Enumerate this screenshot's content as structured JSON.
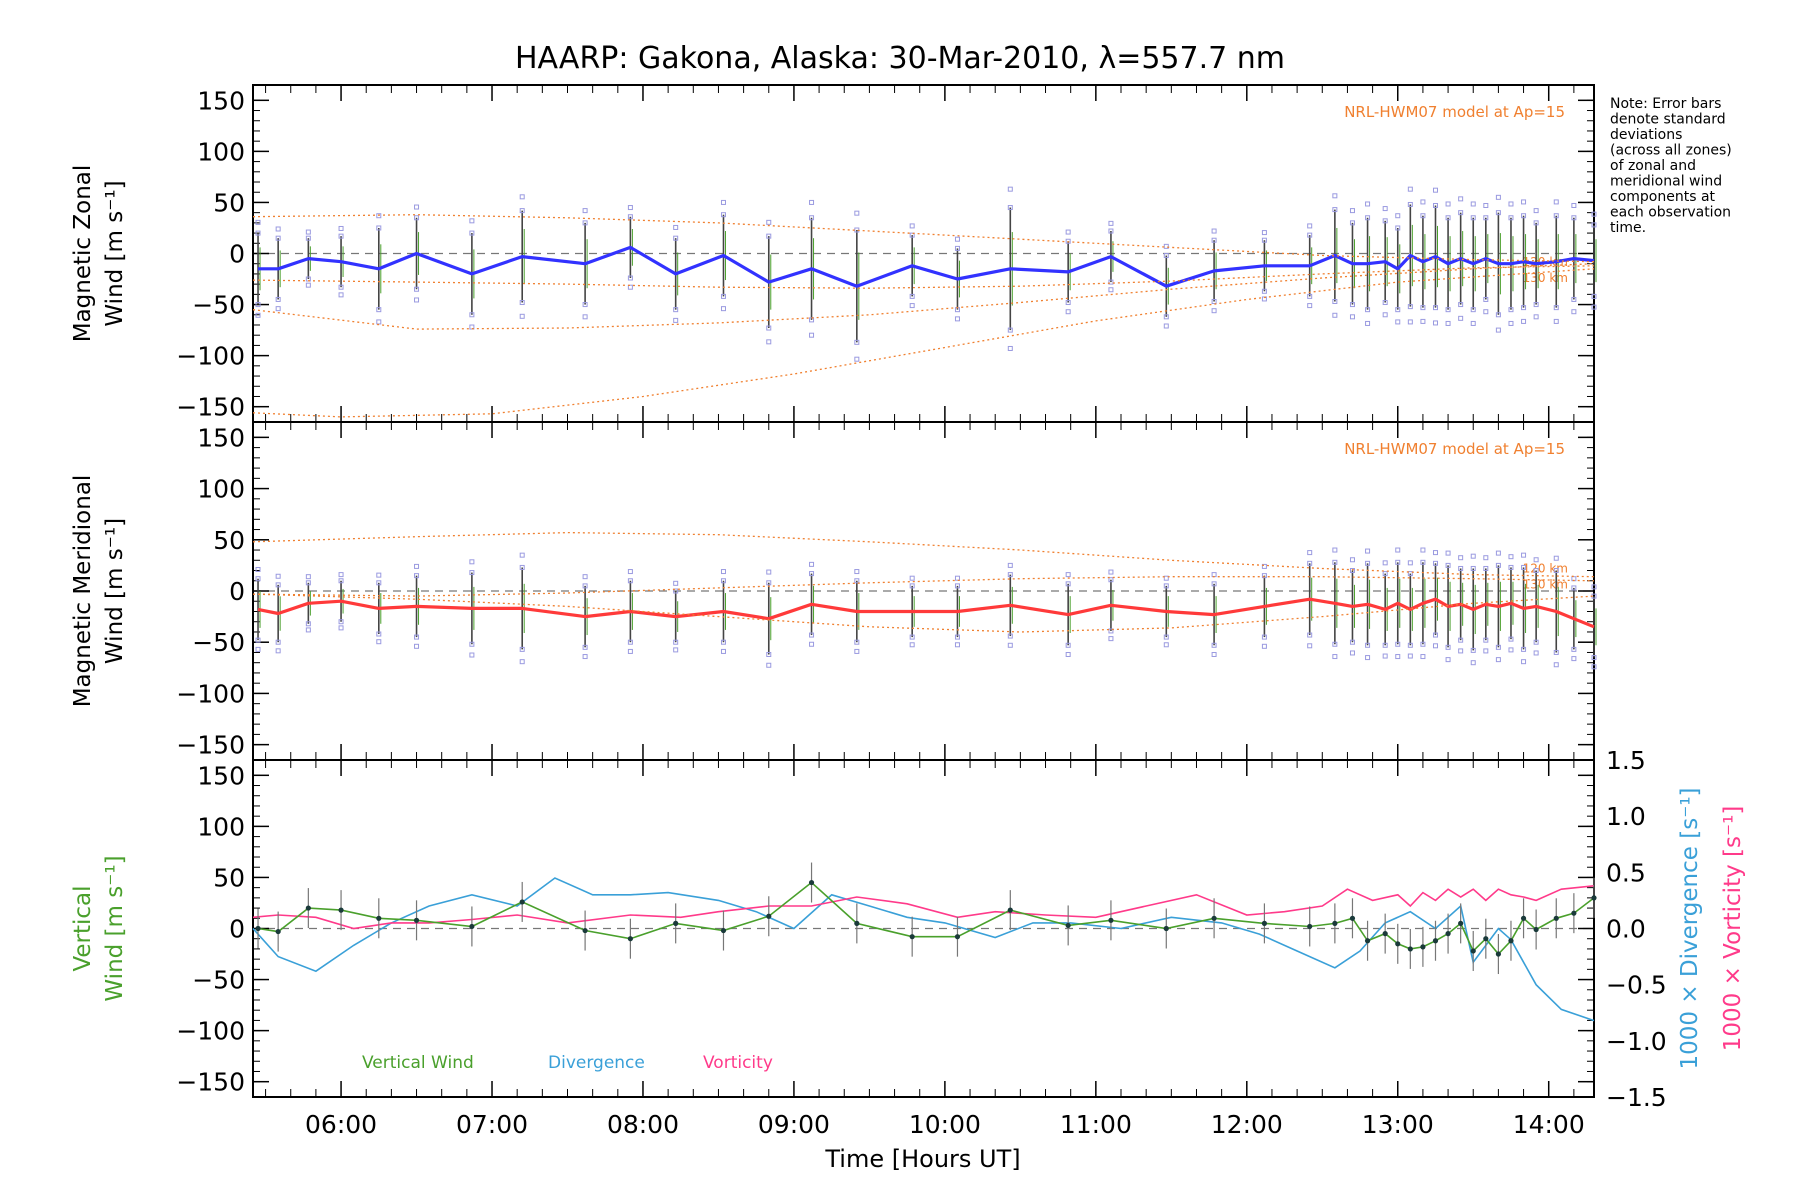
{
  "title": "HAARP: Gakona,  Alaska: 30-Mar-2010, λ=557.7 nm",
  "note": [
    "Note: Error bars",
    "denote standard",
    "deviations",
    "(across all zones)",
    "of zonal and",
    "meridional wind",
    "components at",
    "each observation",
    "time."
  ],
  "colors": {
    "zonal": "#3232ff",
    "meridional": "#ff3a3a",
    "model": "#f08030",
    "vertical": "#4aa02c",
    "divergence": "#3aa0d8",
    "vorticity": "#ff3a8a",
    "scatter": "#9a9ae0",
    "errorbar": "#444444"
  },
  "chart_data": [
    {
      "type": "line",
      "panel": "zonal",
      "ylabel": [
        "Magnetic Zonal",
        "Wind [m s⁻¹]"
      ],
      "ylim": [
        -165,
        165
      ],
      "yticks": [
        -150,
        -100,
        -50,
        0,
        50,
        100,
        150
      ],
      "xlim": [
        "05:25",
        "14:18"
      ],
      "model_label": "NRL-HWM07 model at Ap=15",
      "model_alt_labels": [
        "120 km",
        "130 km"
      ],
      "series": [
        {
          "times": [
            "05:27",
            "05:35",
            "05:47",
            "06:00",
            "06:15",
            "06:30",
            "06:52",
            "07:12",
            "07:37",
            "07:55",
            "08:13",
            "08:32",
            "08:50",
            "09:07",
            "09:25",
            "09:47",
            "10:05",
            "10:26",
            "10:49",
            "11:06",
            "11:28",
            "11:47",
            "12:07",
            "12:25",
            "12:35",
            "12:42",
            "12:48",
            "12:55",
            "13:00",
            "13:05",
            "13:10",
            "13:15",
            "13:20",
            "13:25",
            "13:30",
            "13:35",
            "13:40",
            "13:45",
            "13:50",
            "13:55",
            "14:03",
            "14:10",
            "14:18"
          ],
          "values": [
            -15,
            -15,
            -5,
            -8,
            -15,
            0,
            -20,
            -3,
            -10,
            6,
            -20,
            -2,
            -28,
            -15,
            -32,
            -12,
            -25,
            -15,
            -18,
            -3,
            -32,
            -17,
            -12,
            -12,
            -2,
            -10,
            -10,
            -8,
            -15,
            -2,
            -8,
            -3,
            -10,
            -5,
            -10,
            -5,
            -10,
            -10,
            -8,
            -10,
            -8,
            -5,
            -7
          ]
        }
      ],
      "error_bars": [
        35,
        30,
        20,
        25,
        40,
        35,
        40,
        45,
        40,
        30,
        35,
        40,
        45,
        50,
        55,
        30,
        30,
        60,
        30,
        25,
        30,
        30,
        25,
        30,
        45,
        40,
        45,
        40,
        40,
        50,
        45,
        50,
        45,
        45,
        45,
        40,
        50,
        45,
        45,
        40,
        45,
        40,
        35
      ]
    },
    {
      "type": "line",
      "panel": "meridional",
      "ylabel": [
        "Magnetic Meridional",
        "Wind [m s⁻¹]"
      ],
      "ylim": [
        -165,
        165
      ],
      "yticks": [
        -150,
        -100,
        -50,
        0,
        50,
        100,
        150
      ],
      "xlim": [
        "05:25",
        "14:18"
      ],
      "model_label": "NRL-HWM07 model at Ap=15",
      "model_alt_labels": [
        "120 km",
        "130 km"
      ],
      "series": [
        {
          "times": [
            "05:27",
            "05:35",
            "05:47",
            "06:00",
            "06:15",
            "06:30",
            "06:52",
            "07:12",
            "07:37",
            "07:55",
            "08:13",
            "08:32",
            "08:50",
            "09:07",
            "09:25",
            "09:47",
            "10:05",
            "10:26",
            "10:49",
            "11:06",
            "11:28",
            "11:47",
            "12:07",
            "12:25",
            "12:35",
            "12:42",
            "12:48",
            "12:55",
            "13:00",
            "13:05",
            "13:10",
            "13:15",
            "13:20",
            "13:25",
            "13:30",
            "13:35",
            "13:40",
            "13:45",
            "13:50",
            "13:55",
            "14:03",
            "14:10",
            "14:18"
          ],
          "values": [
            -18,
            -22,
            -12,
            -10,
            -17,
            -15,
            -17,
            -17,
            -25,
            -20,
            -25,
            -20,
            -27,
            -13,
            -20,
            -20,
            -20,
            -14,
            -23,
            -14,
            -20,
            -23,
            -15,
            -8,
            -12,
            -15,
            -13,
            -18,
            -12,
            -18,
            -12,
            -8,
            -15,
            -13,
            -18,
            -13,
            -15,
            -12,
            -17,
            -15,
            -20,
            -27,
            -35
          ]
        }
      ],
      "error_bars": [
        30,
        28,
        20,
        20,
        25,
        30,
        35,
        40,
        30,
        30,
        25,
        30,
        35,
        30,
        30,
        25,
        25,
        30,
        30,
        25,
        25,
        30,
        30,
        35,
        40,
        35,
        40,
        35,
        40,
        35,
        40,
        35,
        40,
        35,
        40,
        35,
        40,
        35,
        40,
        35,
        40,
        30,
        30
      ]
    },
    {
      "type": "line",
      "panel": "vertical",
      "ylabel": [
        "Vertical",
        "Wind [m s⁻¹]"
      ],
      "y2label": "1000 × Divergence [s⁻¹]",
      "y3label": "1000 × Vorticity [s⁻¹]",
      "ylim": [
        -165,
        165
      ],
      "yticks": [
        -150,
        -100,
        -50,
        0,
        50,
        100,
        150
      ],
      "y2lim": [
        -1.5,
        1.5
      ],
      "y2ticks": [
        -1.5,
        -1.0,
        -0.5,
        0.0,
        0.5,
        1.0,
        1.5
      ],
      "xlabel": "Time [Hours UT]",
      "xticks": [
        "06:00",
        "07:00",
        "08:00",
        "09:00",
        "10:00",
        "11:00",
        "12:00",
        "13:00",
        "14:00"
      ],
      "legend": [
        "Vertical Wind",
        "Divergence",
        "Vorticity"
      ],
      "series": [
        {
          "name": "Vertical Wind",
          "times": [
            "05:27",
            "05:35",
            "05:47",
            "06:00",
            "06:15",
            "06:30",
            "06:52",
            "07:12",
            "07:37",
            "07:55",
            "08:13",
            "08:32",
            "08:50",
            "09:07",
            "09:25",
            "09:47",
            "10:05",
            "10:26",
            "10:49",
            "11:06",
            "11:28",
            "11:47",
            "12:07",
            "12:25",
            "12:35",
            "12:42",
            "12:48",
            "12:55",
            "13:00",
            "13:05",
            "13:10",
            "13:15",
            "13:20",
            "13:25",
            "13:30",
            "13:35",
            "13:40",
            "13:45",
            "13:50",
            "13:55",
            "14:03",
            "14:10",
            "14:18"
          ],
          "values": [
            0,
            -3,
            20,
            18,
            10,
            8,
            2,
            26,
            -2,
            -10,
            5,
            -2,
            12,
            45,
            5,
            -8,
            -8,
            18,
            3,
            8,
            0,
            10,
            5,
            2,
            5,
            10,
            -12,
            -5,
            -15,
            -20,
            -18,
            -12,
            -5,
            5,
            -22,
            -10,
            -25,
            -12,
            10,
            -1,
            10,
            15,
            30
          ]
        },
        {
          "name": "Divergence",
          "times": [
            "05:25",
            "05:35",
            "05:50",
            "06:05",
            "06:20",
            "06:35",
            "06:52",
            "07:10",
            "07:25",
            "07:40",
            "07:55",
            "08:10",
            "08:30",
            "08:45",
            "09:00",
            "09:15",
            "09:30",
            "09:45",
            "10:00",
            "10:20",
            "10:35",
            "10:50",
            "11:10",
            "11:30",
            "11:50",
            "12:05",
            "12:20",
            "12:35",
            "12:45",
            "12:55",
            "13:05",
            "13:15",
            "13:25",
            "13:30",
            "13:40",
            "13:45",
            "13:55",
            "14:05",
            "14:18"
          ],
          "values": [
            0.0,
            -0.25,
            -0.38,
            -0.15,
            0.05,
            0.2,
            0.3,
            0.2,
            0.45,
            0.3,
            0.3,
            0.32,
            0.25,
            0.15,
            0.0,
            0.3,
            0.2,
            0.1,
            0.05,
            -0.08,
            0.05,
            0.05,
            0.0,
            0.1,
            0.05,
            -0.05,
            -0.2,
            -0.35,
            -0.2,
            0.05,
            0.15,
            0.0,
            0.2,
            -0.3,
            0.0,
            -0.1,
            -0.5,
            -0.72,
            -0.82
          ]
        },
        {
          "name": "Vorticity",
          "times": [
            "05:25",
            "05:35",
            "05:50",
            "06:05",
            "06:20",
            "06:35",
            "06:52",
            "07:10",
            "07:30",
            "07:55",
            "08:15",
            "08:30",
            "08:50",
            "09:07",
            "09:25",
            "09:45",
            "10:05",
            "10:20",
            "10:40",
            "11:00",
            "11:20",
            "11:40",
            "12:00",
            "12:15",
            "12:30",
            "12:40",
            "12:50",
            "13:00",
            "13:05",
            "13:10",
            "13:15",
            "13:20",
            "13:25",
            "13:30",
            "13:35",
            "13:40",
            "13:45",
            "13:50",
            "13:55",
            "14:05",
            "14:18"
          ],
          "values": [
            0.1,
            0.12,
            0.1,
            0.0,
            0.05,
            0.05,
            0.08,
            0.12,
            0.05,
            0.12,
            0.1,
            0.15,
            0.2,
            0.2,
            0.28,
            0.22,
            0.1,
            0.15,
            0.12,
            0.1,
            0.2,
            0.3,
            0.12,
            0.15,
            0.2,
            0.35,
            0.25,
            0.3,
            0.2,
            0.32,
            0.25,
            0.35,
            0.28,
            0.35,
            0.25,
            0.35,
            0.3,
            0.28,
            0.25,
            0.35,
            0.38
          ]
        }
      ]
    }
  ]
}
